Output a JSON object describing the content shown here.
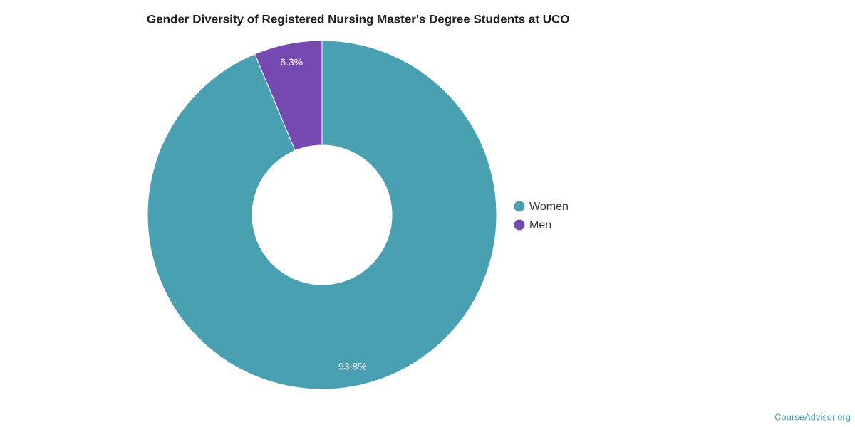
{
  "chart_data": {
    "type": "donut",
    "title": "Gender Diversity of Registered Nursing Master's Degree Students at UCO",
    "categories": [
      "Women",
      "Men"
    ],
    "values": [
      93.8,
      6.3
    ],
    "value_labels": [
      "93.8%",
      "6.3%"
    ],
    "colors": [
      "#4aa0b3",
      "#7549b1"
    ],
    "legend": "right",
    "credit": "CourseAdvisor.org"
  }
}
